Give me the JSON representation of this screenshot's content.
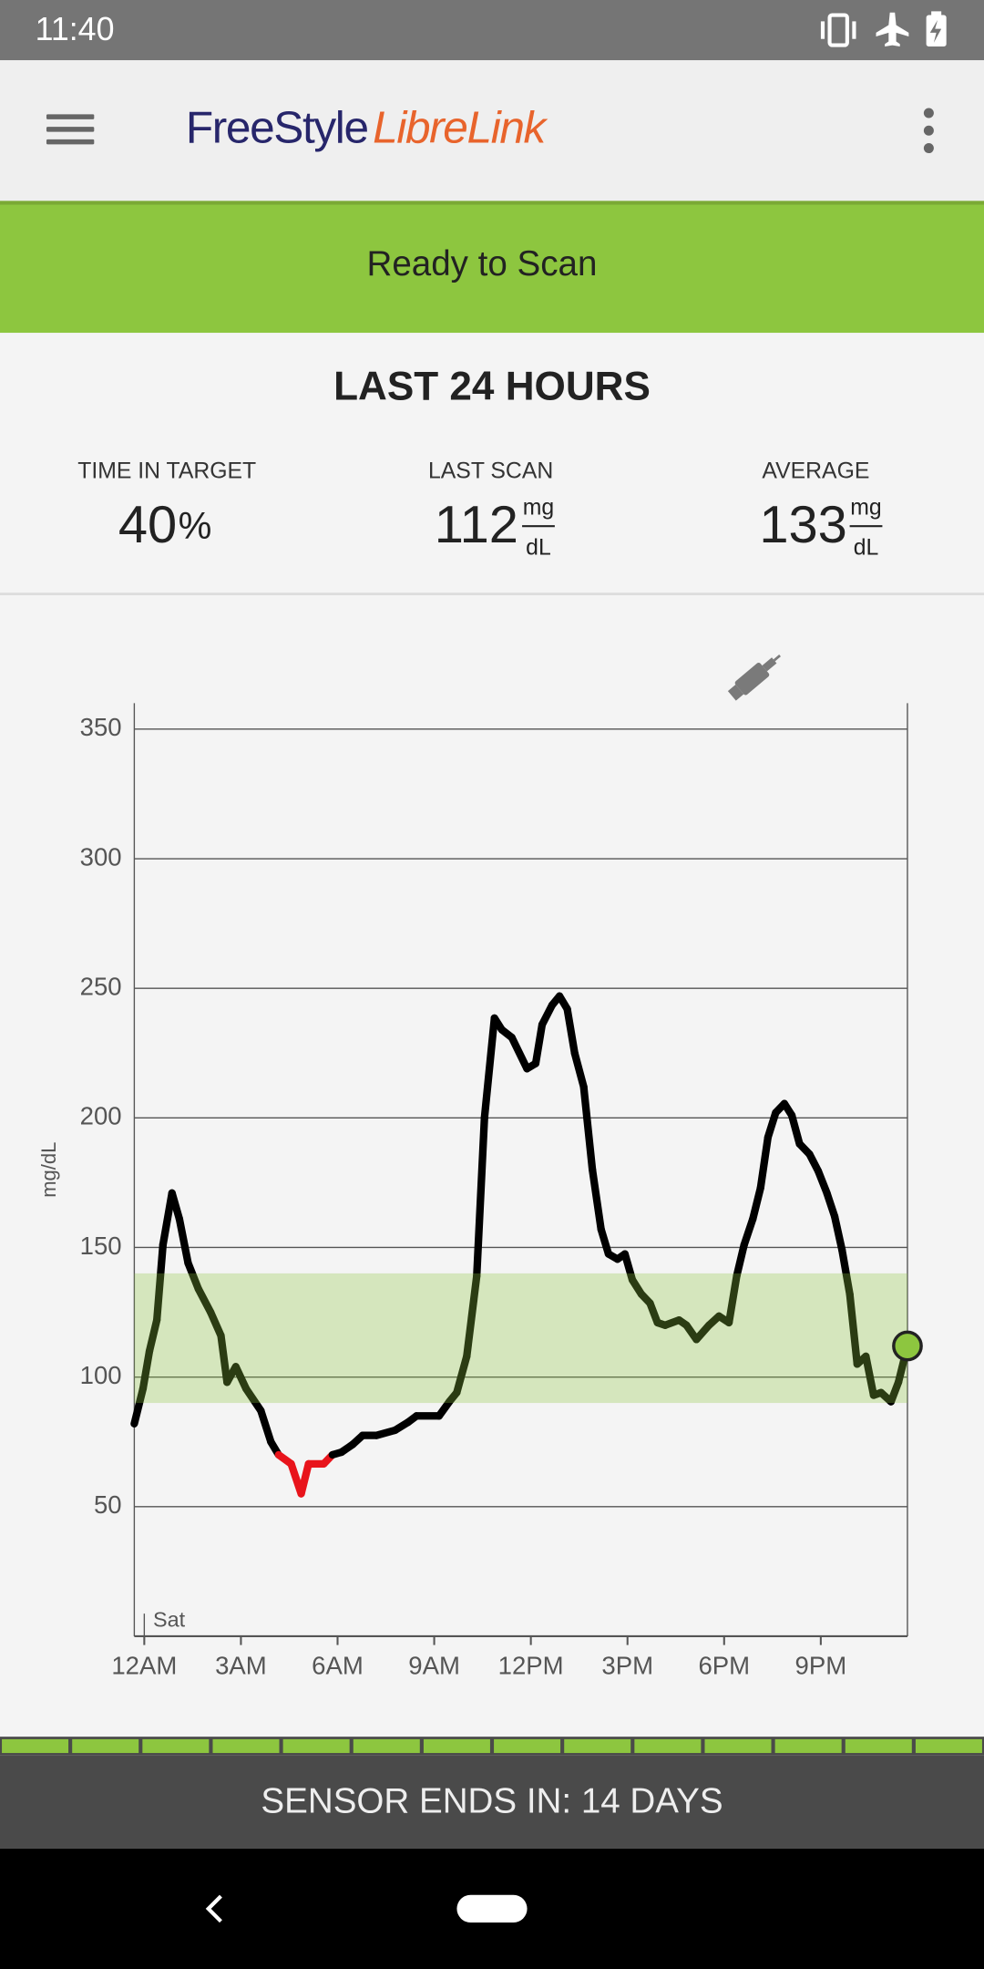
{
  "status_bar": {
    "time": "11:40"
  },
  "app_bar": {
    "logo_left": "FreeStyle",
    "logo_right": "LibreLink"
  },
  "banner": {
    "text": "Ready to Scan"
  },
  "summary": {
    "title": "LAST 24 HOURS",
    "time_in_target": {
      "label": "TIME IN TARGET",
      "value": "40",
      "unit": "%"
    },
    "last_scan": {
      "label": "LAST SCAN",
      "value": "112",
      "unit_top": "mg",
      "unit_bottom": "dL"
    },
    "average": {
      "label": "AVERAGE",
      "value": "133",
      "unit_top": "mg",
      "unit_bottom": "dL"
    }
  },
  "chart_data": {
    "type": "line",
    "ylabel": "mg/dL",
    "day_label": "Sat",
    "color": "#000000",
    "low_limit": 70,
    "low_color": "#e8141b",
    "target_range": [
      90,
      140
    ],
    "target_color": "#8dc63f",
    "marker_color": "#8dc63f",
    "xlim": [
      -0.31,
      23.69
    ],
    "ylim": [
      0,
      360
    ],
    "xticks": [
      {
        "value": 0,
        "label": "12AM"
      },
      {
        "value": 3,
        "label": "3AM"
      },
      {
        "value": 6,
        "label": "6AM"
      },
      {
        "value": 9,
        "label": "9AM"
      },
      {
        "value": 12,
        "label": "12PM"
      },
      {
        "value": 15,
        "label": "3PM"
      },
      {
        "value": 18,
        "label": "6PM"
      },
      {
        "value": 21,
        "label": "9PM"
      }
    ],
    "yticks": [
      50,
      100,
      150,
      200,
      250,
      300,
      350
    ],
    "grid": true,
    "x": [
      -0.31,
      -0.04,
      0.16,
      0.39,
      0.58,
      0.86,
      1.09,
      1.36,
      1.68,
      2.06,
      2.38,
      2.57,
      2.84,
      3.16,
      3.62,
      3.93,
      4.17,
      4.56,
      4.87,
      5.1,
      5.57,
      5.84,
      6.12,
      6.47,
      6.78,
      7.21,
      7.79,
      8.18,
      8.45,
      9.15,
      9.47,
      9.7,
      10.01,
      10.32,
      10.56,
      10.87,
      11.1,
      11.41,
      11.88,
      12.15,
      12.35,
      12.66,
      12.89,
      13.13,
      13.36,
      13.64,
      13.91,
      14.18,
      14.41,
      14.69,
      14.92,
      15.15,
      15.43,
      15.7,
      15.93,
      16.17,
      16.6,
      16.83,
      17.14,
      17.53,
      17.84,
      18.15,
      18.39,
      18.62,
      18.89,
      19.13,
      19.36,
      19.6,
      19.87,
      20.1,
      20.34,
      20.65,
      20.92,
      21.19,
      21.43,
      21.66,
      21.9,
      22.13,
      22.4,
      22.64,
      22.87,
      23.18,
      23.41,
      23.69
    ],
    "values": [
      82,
      95.5,
      110,
      122,
      151,
      171,
      161,
      144,
      134,
      125,
      116,
      98,
      104,
      95.5,
      87,
      75,
      70,
      66.5,
      55,
      66.5,
      66.5,
      70,
      71,
      74,
      77.5,
      77.5,
      79.5,
      82.5,
      85,
      85,
      90.5,
      94,
      108,
      139,
      200,
      238.5,
      234,
      231,
      219,
      221,
      236,
      243.5,
      247,
      242,
      225,
      212,
      180,
      157,
      147.5,
      145.5,
      147.5,
      137.5,
      132,
      128.5,
      121,
      120,
      122,
      120,
      114.5,
      120,
      123.5,
      121,
      139,
      151,
      161,
      173,
      192.5,
      202,
      205.5,
      201,
      190,
      186,
      179.5,
      171,
      162,
      149,
      132,
      105,
      108,
      93,
      94,
      90.5,
      98,
      112
    ]
  },
  "footer": {
    "text": "SENSOR ENDS IN: 14 DAYS"
  }
}
